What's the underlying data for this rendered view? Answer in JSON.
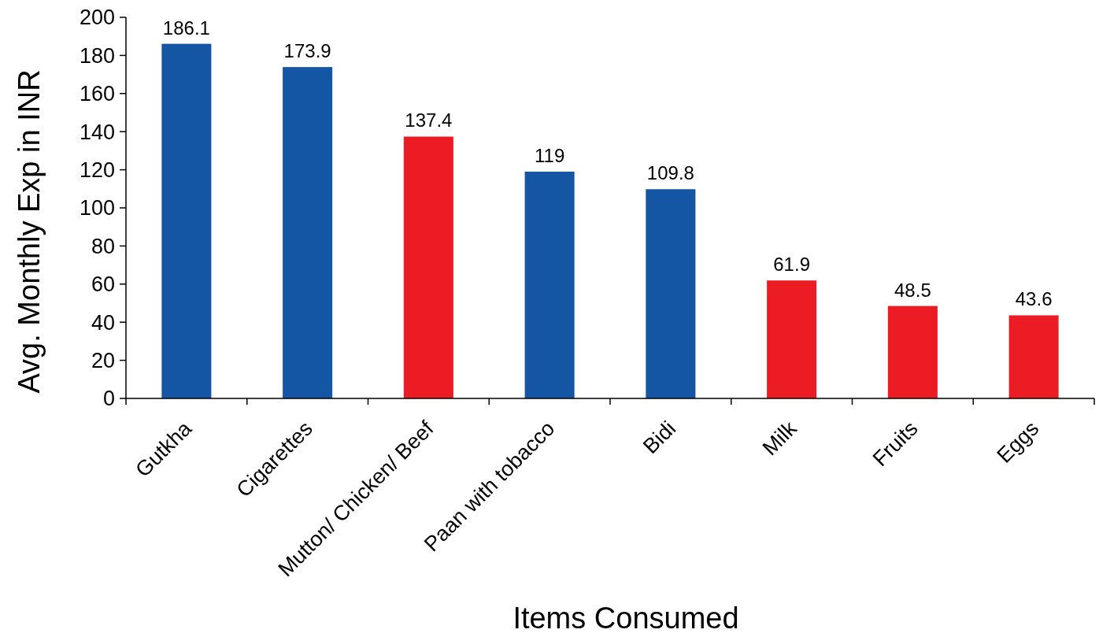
{
  "chart_data": {
    "type": "bar",
    "xlabel": "Items Consumed",
    "ylabel": "Avg. Monthly Exp in INR",
    "categories": [
      "Gutkha",
      "Cigarettes",
      "Mutton/ Chicken/ Beef",
      "Paan with tobacco",
      "Bidi",
      "Milk",
      "Fruits",
      "Eggs"
    ],
    "values": [
      186.1,
      173.9,
      137.4,
      119,
      109.8,
      61.9,
      48.5,
      43.6
    ],
    "colors": [
      "#1455a4",
      "#1455a4",
      "#ec1c24",
      "#1455a4",
      "#1455a4",
      "#ec1c24",
      "#ec1c24",
      "#ec1c24"
    ],
    "ylim": [
      0,
      200
    ],
    "yticks": [
      0,
      20,
      40,
      60,
      80,
      100,
      120,
      140,
      160,
      180,
      200
    ],
    "grid": false,
    "data_labels": true
  }
}
